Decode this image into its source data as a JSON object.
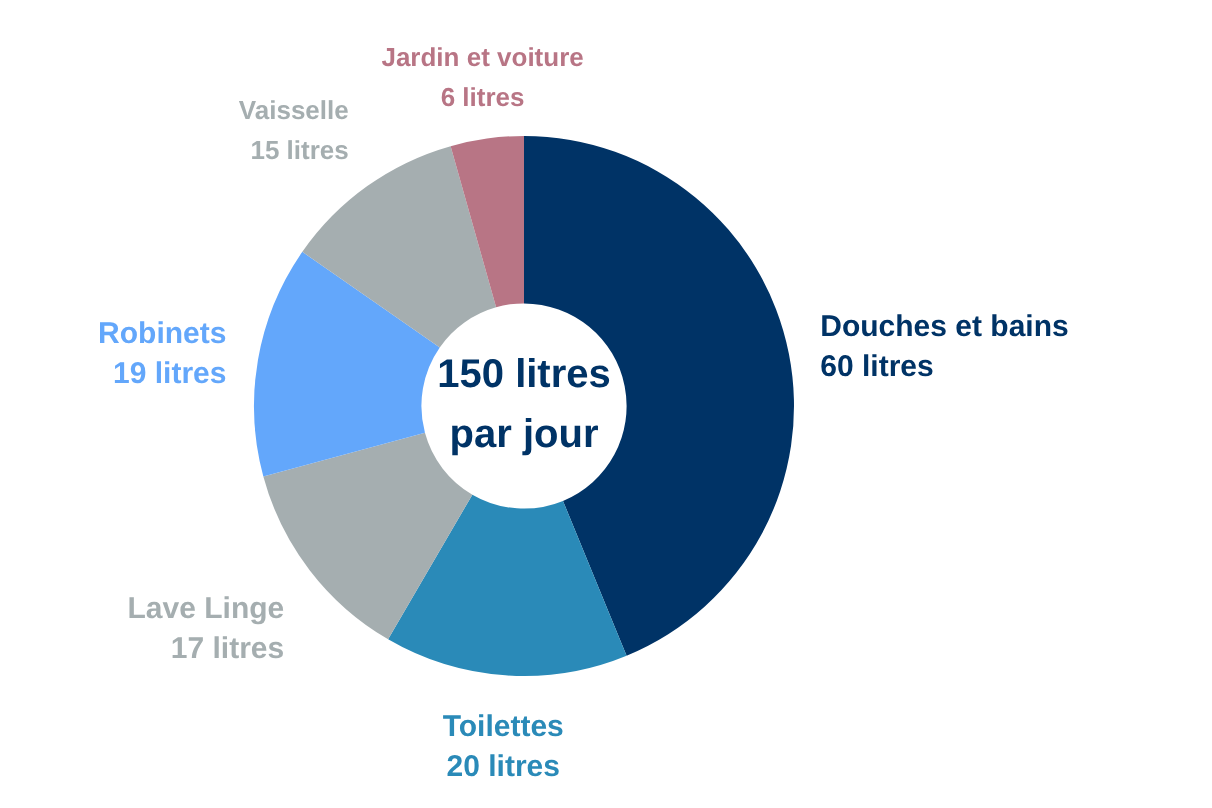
{
  "chart_data": {
    "type": "donut",
    "categories": [
      "Douches et bains",
      "Toilettes",
      "Lave Linge",
      "Robinets",
      "Vaisselle",
      "Jardin et voiture"
    ],
    "values": [
      60,
      20,
      17,
      19,
      15,
      6
    ],
    "value_labels": [
      "60 litres",
      "20 litres",
      "17 litres",
      "19 litres",
      "15 litres",
      "6 litres"
    ],
    "colors": [
      "#003366",
      "#2a8ab8",
      "#a5aeb0",
      "#63a7fb",
      "#a5aeb0",
      "#b87585"
    ],
    "annotations": [
      "150 litres par jour"
    ],
    "legend": false
  }
}
